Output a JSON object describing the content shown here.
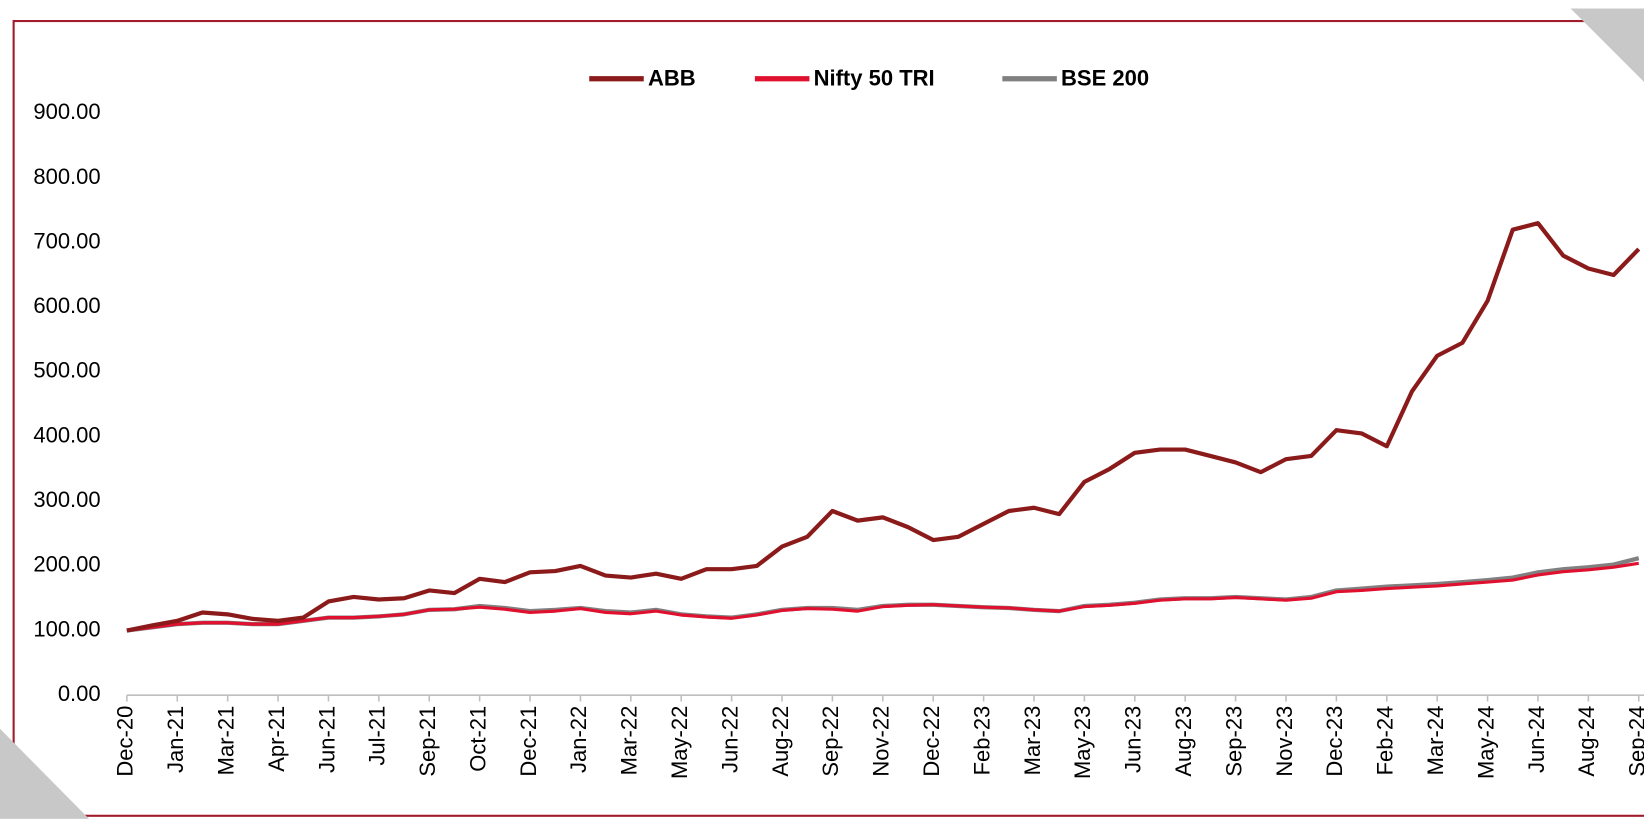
{
  "chart_data": {
    "type": "line",
    "categories": [
      "Dec-20",
      null,
      "Jan-21",
      null,
      "Mar-21",
      null,
      "Apr-21",
      null,
      "Jun-21",
      null,
      "Jul-21",
      null,
      "Sep-21",
      null,
      "Oct-21",
      null,
      "Dec-21",
      null,
      "Jan-22",
      null,
      "Mar-22",
      null,
      "May-22",
      null,
      "Jun-22",
      null,
      "Aug-22",
      null,
      "Sep-22",
      null,
      "Nov-22",
      null,
      "Dec-22",
      null,
      "Feb-23",
      null,
      "Mar-23",
      null,
      "May-23",
      null,
      "Jun-23",
      null,
      "Aug-23",
      null,
      "Sep-23",
      null,
      "Nov-23",
      null,
      "Dec-23",
      null,
      "Feb-24",
      null,
      "Mar-24",
      null,
      "May-24",
      null,
      "Jun-24",
      null,
      "Aug-24",
      null,
      "Sep-24"
    ],
    "series": [
      {
        "name": "ABB",
        "color": "#8b1a1a",
        "values": [
          100,
          108,
          115,
          128,
          125,
          118,
          115,
          120,
          145,
          152,
          148,
          150,
          162,
          158,
          180,
          175,
          190,
          192,
          200,
          185,
          182,
          188,
          180,
          195,
          195,
          200,
          230,
          245,
          285,
          270,
          275,
          260,
          240,
          245,
          265,
          285,
          290,
          280,
          330,
          350,
          375,
          380,
          380,
          370,
          360,
          345,
          365,
          370,
          410,
          405,
          385,
          470,
          525,
          545,
          610,
          720,
          730,
          680,
          660,
          650,
          690
        ]
      },
      {
        "name": "Nifty 50 TRI",
        "color": "#e0102f",
        "values": [
          100,
          105,
          110,
          112,
          112,
          110,
          110,
          115,
          120,
          120,
          122,
          125,
          132,
          133,
          136,
          133,
          128,
          130,
          134,
          128,
          126,
          130,
          124,
          121,
          119,
          124,
          131,
          134,
          133,
          130,
          137,
          139,
          140,
          138,
          136,
          135,
          132,
          130,
          137,
          139,
          142,
          147,
          149,
          149,
          151,
          149,
          147,
          150,
          160,
          162,
          165,
          167,
          169,
          172,
          175,
          178,
          186,
          191,
          194,
          198,
          204
        ]
      },
      {
        "name": "BSE 200",
        "color": "#808080",
        "values": [
          100,
          105,
          110,
          112,
          112,
          110,
          110,
          115,
          120,
          120,
          122,
          125,
          132,
          133,
          138,
          135,
          130,
          132,
          135,
          130,
          128,
          132,
          125,
          122,
          120,
          125,
          132,
          135,
          135,
          132,
          138,
          140,
          140,
          138,
          136,
          135,
          132,
          130,
          138,
          140,
          143,
          148,
          150,
          150,
          152,
          150,
          148,
          152,
          162,
          165,
          168,
          170,
          172,
          175,
          178,
          182,
          190,
          195,
          198,
          202,
          212
        ]
      }
    ],
    "ylim": [
      0,
      900
    ],
    "yticks": [
      {
        "value": 0,
        "label": "0.00"
      },
      {
        "value": 100,
        "label": "100.00"
      },
      {
        "value": 200,
        "label": "200.00"
      },
      {
        "value": 300,
        "label": "300.00"
      },
      {
        "value": 400,
        "label": "400.00"
      },
      {
        "value": 500,
        "label": "500.00"
      },
      {
        "value": 600,
        "label": "600.00"
      },
      {
        "value": 700,
        "label": "700.00"
      },
      {
        "value": 800,
        "label": "800.00"
      },
      {
        "value": 900,
        "label": "900.00"
      }
    ],
    "grid": false,
    "legend": "top"
  }
}
